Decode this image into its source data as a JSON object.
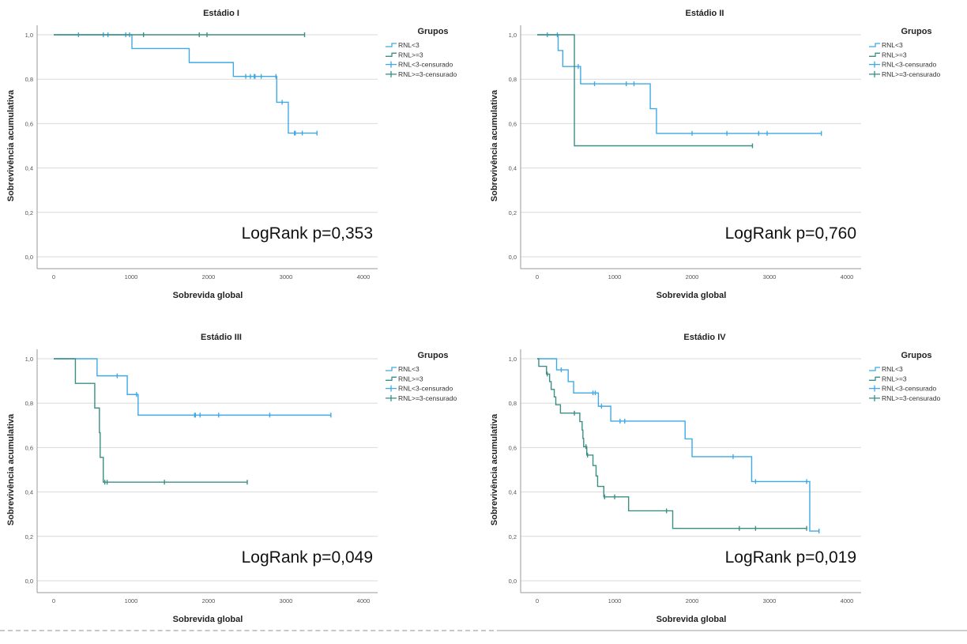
{
  "figure": {
    "legend_title": "Grupos",
    "xlabel": "Sobrevida global",
    "ylabel": "Sobrevivência acumulativa",
    "legend_items": [
      {
        "label": "RNL<3",
        "kind": "line",
        "color": "#3fa9e6"
      },
      {
        "label": "RNL>=3",
        "kind": "line",
        "color": "#3a8f85"
      },
      {
        "label": "RNL<3-censurado",
        "kind": "censor",
        "color": "#3fa9e6"
      },
      {
        "label": "RNL>=3-censurado",
        "kind": "censor",
        "color": "#3a8f85"
      }
    ]
  },
  "chart_data": [
    {
      "type": "line",
      "subtype": "kaplan-meier",
      "title": "Estádio I",
      "xlabel": "Sobrevida global",
      "ylabel": "Sobrevivência acumulativa",
      "xlim": [
        0,
        4000
      ],
      "ylim": [
        0.0,
        1.0
      ],
      "xticks": [
        "0",
        "1000",
        "2000",
        "3000",
        "4000"
      ],
      "yticks": [
        "0,0",
        "0,2",
        "0,4",
        "0,6",
        "0,8",
        "1,0"
      ],
      "grid": true,
      "legend": "right",
      "annotation": "LogRank p=0,353",
      "series": [
        {
          "name": "RNL<3",
          "color": "#3fa9e6",
          "steps": [
            [
              0,
              1.0
            ],
            [
              1010,
              0.938
            ],
            [
              1750,
              0.875
            ],
            [
              2320,
              0.8125
            ],
            [
              2880,
              0.696
            ],
            [
              3030,
              0.557
            ]
          ],
          "end": 3400,
          "censored": [
            [
              320,
              1.0
            ],
            [
              640,
              1.0
            ],
            [
              700,
              1.0
            ],
            [
              930,
              1.0
            ],
            [
              980,
              1.0
            ],
            [
              2480,
              0.8125
            ],
            [
              2540,
              0.8125
            ],
            [
              2590,
              0.8125
            ],
            [
              2600,
              0.8125
            ],
            [
              2680,
              0.8125
            ],
            [
              2870,
              0.8125
            ],
            [
              2950,
              0.696
            ],
            [
              3110,
              0.557
            ],
            [
              3120,
              0.557
            ],
            [
              3210,
              0.557
            ],
            [
              3400,
              0.557
            ]
          ]
        },
        {
          "name": "RNL>=3",
          "color": "#3a8f85",
          "steps": [
            [
              0,
              1.0
            ]
          ],
          "end": 3240,
          "censored": [
            [
              1160,
              1.0
            ],
            [
              1880,
              1.0
            ],
            [
              1980,
              1.0
            ],
            [
              3240,
              1.0
            ]
          ]
        }
      ]
    },
    {
      "type": "line",
      "subtype": "kaplan-meier",
      "title": "Estádio II",
      "xlabel": "Sobrevida global",
      "ylabel": "Sobrevivência acumulativa",
      "xlim": [
        0,
        4000
      ],
      "ylim": [
        0.0,
        1.0
      ],
      "xticks": [
        "0",
        "1000",
        "2000",
        "3000",
        "4000"
      ],
      "yticks": [
        "0,0",
        "0,2",
        "0,4",
        "0,6",
        "0,8",
        "1,0"
      ],
      "grid": true,
      "legend": "right",
      "annotation": "LogRank p=0,760",
      "series": [
        {
          "name": "RNL<3",
          "color": "#3fa9e6",
          "steps": [
            [
              0,
              1.0
            ],
            [
              270,
              0.929
            ],
            [
              330,
              0.857
            ],
            [
              560,
              0.779
            ],
            [
              1460,
              0.667
            ],
            [
              1540,
              0.556
            ]
          ],
          "end": 3670,
          "censored": [
            [
              130,
              1.0
            ],
            [
              260,
              1.0
            ],
            [
              530,
              0.857
            ],
            [
              740,
              0.779
            ],
            [
              1150,
              0.779
            ],
            [
              1250,
              0.779
            ],
            [
              2000,
              0.556
            ],
            [
              2450,
              0.556
            ],
            [
              2860,
              0.556
            ],
            [
              2970,
              0.556
            ],
            [
              3670,
              0.556
            ]
          ]
        },
        {
          "name": "RNL>=3",
          "color": "#3a8f85",
          "steps": [
            [
              0,
              1.0
            ],
            [
              480,
              0.5
            ]
          ],
          "end": 2780,
          "censored": [
            [
              2780,
              0.5
            ]
          ]
        }
      ]
    },
    {
      "type": "line",
      "subtype": "kaplan-meier",
      "title": "Estádio III",
      "xlabel": "Sobrevida global",
      "ylabel": "Sobrevivência acumulativa",
      "xlim": [
        0,
        4000
      ],
      "ylim": [
        0.0,
        1.0
      ],
      "xticks": [
        "0",
        "1000",
        "2000",
        "3000",
        "4000"
      ],
      "yticks": [
        "0,0",
        "0,2",
        "0,4",
        "0,6",
        "0,8",
        "1,0"
      ],
      "grid": true,
      "legend": "right",
      "annotation": "LogRank p=0,049",
      "series": [
        {
          "name": "RNL<3",
          "color": "#3fa9e6",
          "steps": [
            [
              0,
              1.0
            ],
            [
              560,
              0.923
            ],
            [
              950,
              0.839
            ],
            [
              1090,
              0.746
            ]
          ],
          "end": 3580,
          "censored": [
            [
              820,
              0.923
            ],
            [
              1070,
              0.839
            ],
            [
              1820,
              0.746
            ],
            [
              1830,
              0.746
            ],
            [
              1890,
              0.746
            ],
            [
              2130,
              0.746
            ],
            [
              2790,
              0.746
            ],
            [
              3580,
              0.746
            ]
          ]
        },
        {
          "name": "RNL>=3",
          "color": "#3a8f85",
          "steps": [
            [
              0,
              1.0
            ],
            [
              280,
              0.889
            ],
            [
              530,
              0.778
            ],
            [
              590,
              0.667
            ],
            [
              600,
              0.556
            ],
            [
              640,
              0.444
            ]
          ],
          "end": 2500,
          "censored": [
            [
              660,
              0.444
            ],
            [
              690,
              0.444
            ],
            [
              1430,
              0.444
            ],
            [
              2500,
              0.444
            ]
          ]
        }
      ]
    },
    {
      "type": "line",
      "subtype": "kaplan-meier",
      "title": "Estádio IV",
      "xlabel": "Sobrevida global",
      "ylabel": "Sobrevivência acumulativa",
      "xlim": [
        0,
        4000
      ],
      "ylim": [
        0.0,
        1.0
      ],
      "xticks": [
        "0",
        "1000",
        "2000",
        "3000",
        "4000"
      ],
      "yticks": [
        "0,0",
        "0,2",
        "0,4",
        "0,6",
        "0,8",
        "1,0"
      ],
      "grid": true,
      "legend": "right",
      "annotation": "LogRank p=0,019",
      "series": [
        {
          "name": "RNL<3",
          "color": "#3fa9e6",
          "steps": [
            [
              0,
              1.0
            ],
            [
              250,
              0.95
            ],
            [
              400,
              0.897
            ],
            [
              470,
              0.846
            ],
            [
              790,
              0.786
            ],
            [
              950,
              0.719
            ],
            [
              1910,
              0.639
            ],
            [
              2000,
              0.559
            ],
            [
              2770,
              0.447
            ],
            [
              3520,
              0.224
            ]
          ],
          "end": 3640,
          "censored": [
            [
              310,
              0.95
            ],
            [
              720,
              0.846
            ],
            [
              750,
              0.846
            ],
            [
              830,
              0.786
            ],
            [
              1070,
              0.719
            ],
            [
              1130,
              0.719
            ],
            [
              2530,
              0.559
            ],
            [
              2820,
              0.447
            ],
            [
              3480,
              0.447
            ],
            [
              3640,
              0.224
            ]
          ]
        },
        {
          "name": "RNL>=3",
          "color": "#3a8f85",
          "steps": [
            [
              0,
              1.0
            ],
            [
              20,
              0.966
            ],
            [
              120,
              0.931
            ],
            [
              160,
              0.897
            ],
            [
              180,
              0.862
            ],
            [
              220,
              0.828
            ],
            [
              240,
              0.793
            ],
            [
              300,
              0.755
            ],
            [
              550,
              0.717
            ],
            [
              580,
              0.679
            ],
            [
              590,
              0.641
            ],
            [
              600,
              0.604
            ],
            [
              640,
              0.566
            ],
            [
              720,
              0.519
            ],
            [
              760,
              0.472
            ],
            [
              780,
              0.425
            ],
            [
              860,
              0.378
            ],
            [
              1180,
              0.315
            ],
            [
              1750,
              0.236
            ]
          ],
          "end": 3480,
          "censored": [
            [
              130,
              0.931
            ],
            [
              480,
              0.755
            ],
            [
              630,
              0.604
            ],
            [
              650,
              0.566
            ],
            [
              870,
              0.378
            ],
            [
              1000,
              0.378
            ],
            [
              1670,
              0.315
            ],
            [
              2610,
              0.236
            ],
            [
              2820,
              0.236
            ],
            [
              3480,
              0.236
            ]
          ]
        }
      ]
    }
  ]
}
